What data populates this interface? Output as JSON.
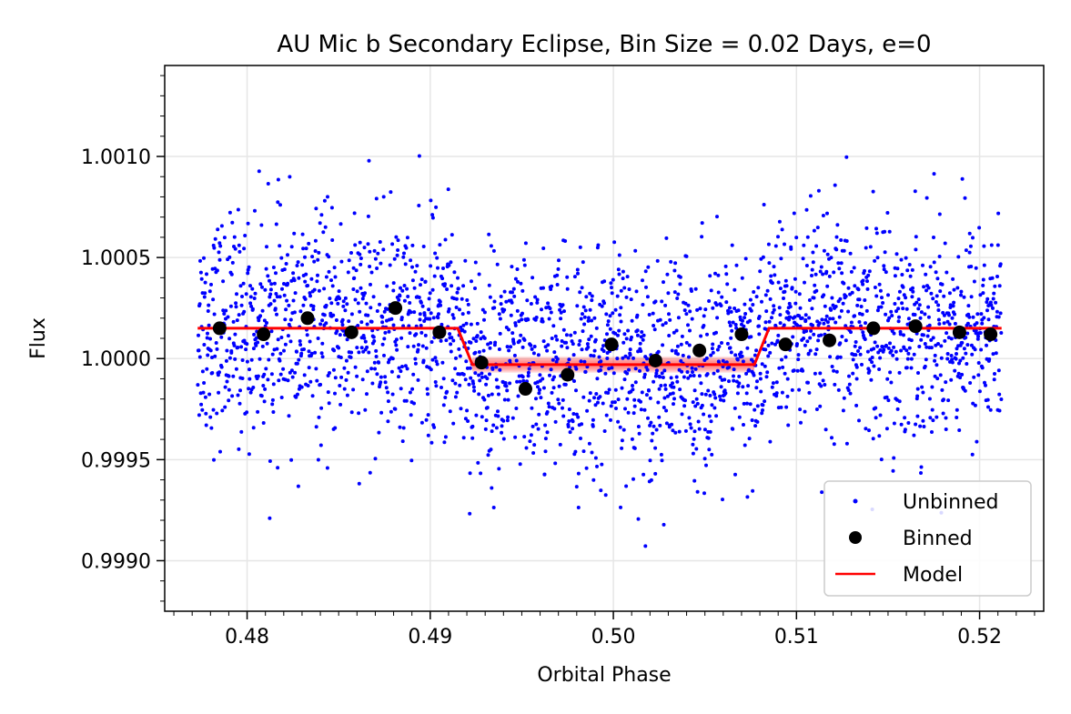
{
  "chart_data": {
    "type": "scatter",
    "title": "AU Mic b Secondary Eclipse, Bin Size = 0.02 Days, e=0",
    "xlabel": "Orbital Phase",
    "ylabel": "Flux",
    "xlim": [
      0.4755,
      0.5235
    ],
    "ylim": [
      0.99875,
      1.00145
    ],
    "xticks": [
      0.48,
      0.49,
      0.5,
      0.51,
      0.52
    ],
    "xtick_labels": [
      "0.48",
      "0.49",
      "0.50",
      "0.51",
      "0.52"
    ],
    "yticks": [
      0.999,
      0.9995,
      1.0,
      1.0005,
      1.001
    ],
    "ytick_labels": [
      "0.9990",
      "0.9995",
      "1.0000",
      "1.0005",
      "1.0010"
    ],
    "grid": true,
    "legend_position": "lower-right",
    "series": [
      {
        "name": "Unbinned",
        "kind": "scatter",
        "color": "#0000ff",
        "x_range": [
          0.4773,
          0.5212
        ],
        "approx_points": 2600,
        "baseline": 1.00015,
        "eclipse_level": 0.99997,
        "scatter_sd": 0.00027
      },
      {
        "name": "Binned",
        "kind": "scatter",
        "color": "#000000",
        "x": [
          0.4785,
          0.4809,
          0.4833,
          0.4857,
          0.4881,
          0.4905,
          0.4928,
          0.4952,
          0.4975,
          0.4999,
          0.5023,
          0.5047,
          0.507,
          0.5094,
          0.5118,
          0.5142,
          0.5165,
          0.5189,
          0.5206
        ],
        "y": [
          1.00015,
          1.00012,
          1.0002,
          1.00013,
          1.00025,
          1.00013,
          0.99998,
          0.99985,
          0.99992,
          1.00007,
          0.99999,
          1.00004,
          1.00012,
          1.00007,
          1.00009,
          1.00015,
          1.00016,
          1.00013,
          1.00012
        ]
      },
      {
        "name": "Model",
        "kind": "line",
        "color": "#ff0000",
        "x": [
          0.4773,
          0.4915,
          0.4923,
          0.5077,
          0.5085,
          0.5212
        ],
        "y": [
          1.00015,
          1.00015,
          0.99997,
          0.99997,
          1.00015,
          1.00015
        ]
      }
    ]
  }
}
